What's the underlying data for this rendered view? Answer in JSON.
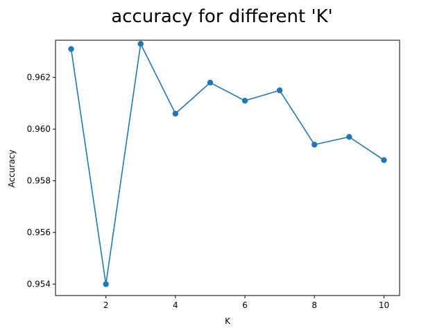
{
  "chart_data": {
    "type": "line",
    "title": "accuracy for different 'K'",
    "xlabel": "K",
    "ylabel": "Accuracy",
    "xlim": [
      0.55,
      10.45
    ],
    "ylim": [
      0.95356,
      0.96344
    ],
    "xticks": [
      2,
      4,
      6,
      8,
      10
    ],
    "xtick_labels": [
      "2",
      "4",
      "6",
      "8",
      "10"
    ],
    "yticks": [
      0.954,
      0.956,
      0.958,
      0.96,
      0.962
    ],
    "ytick_labels": [
      "0.954",
      "0.956",
      "0.958",
      "0.960",
      "0.962"
    ],
    "grid": false,
    "series": [
      {
        "color": "#1f77b4",
        "marker": "circle",
        "x": [
          1,
          2,
          3,
          4,
          5,
          6,
          7,
          8,
          9,
          10
        ],
        "y": [
          0.9631,
          0.954,
          0.9633,
          0.9606,
          0.9618,
          0.9611,
          0.9615,
          0.9594,
          0.9597,
          0.9588
        ]
      }
    ]
  }
}
